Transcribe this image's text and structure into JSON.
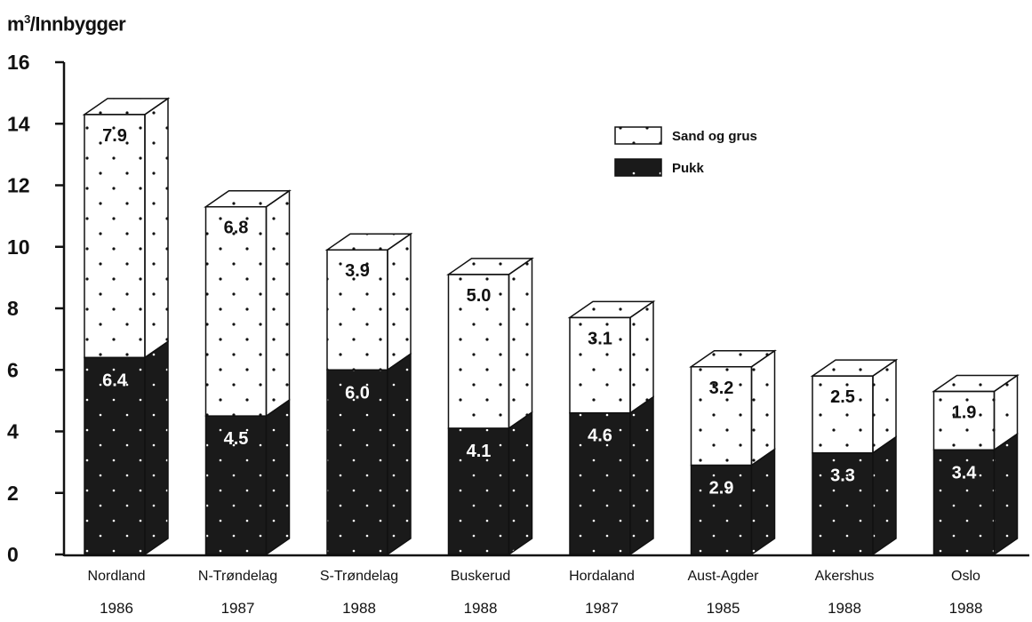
{
  "chart_data": {
    "type": "bar",
    "stacked": true,
    "three_d": true,
    "ylabel_base": "m",
    "ylabel_sup": "3",
    "ylabel_rest": "/Innbygger",
    "ylim": [
      0,
      16
    ],
    "yticks": [
      "0",
      "2",
      "4",
      "6",
      "8",
      "10",
      "12",
      "14",
      "16"
    ],
    "categories": [
      "Nordland",
      "N-Trøndelag",
      "S-Trøndelag",
      "Buskerud",
      "Hordaland",
      "Aust-Agder",
      "Akershus",
      "Oslo"
    ],
    "years": [
      "1986",
      "1987",
      "1988",
      "1988",
      "1987",
      "1985",
      "1988",
      "1988"
    ],
    "series": [
      {
        "name": "Pukk",
        "values": [
          6.4,
          4.5,
          6.0,
          4.1,
          4.6,
          2.9,
          3.3,
          3.4
        ],
        "labels": [
          "6.4",
          "4.5",
          "6.0",
          "4.1",
          "4.6",
          "2.9",
          "3.3",
          "3.4"
        ],
        "color": "#1a1a1a"
      },
      {
        "name": "Sand og grus",
        "values": [
          7.9,
          6.8,
          3.9,
          5.0,
          3.1,
          3.2,
          2.5,
          1.9
        ],
        "labels": [
          "7.9",
          "6.8",
          "3.9",
          "5.0",
          "3.1",
          "3.2",
          "2.5",
          "1.9"
        ],
        "color": "#ffffff"
      }
    ],
    "legend": [
      "Sand og grus",
      "Pukk"
    ],
    "legend_position": "top-right",
    "grid": false
  }
}
